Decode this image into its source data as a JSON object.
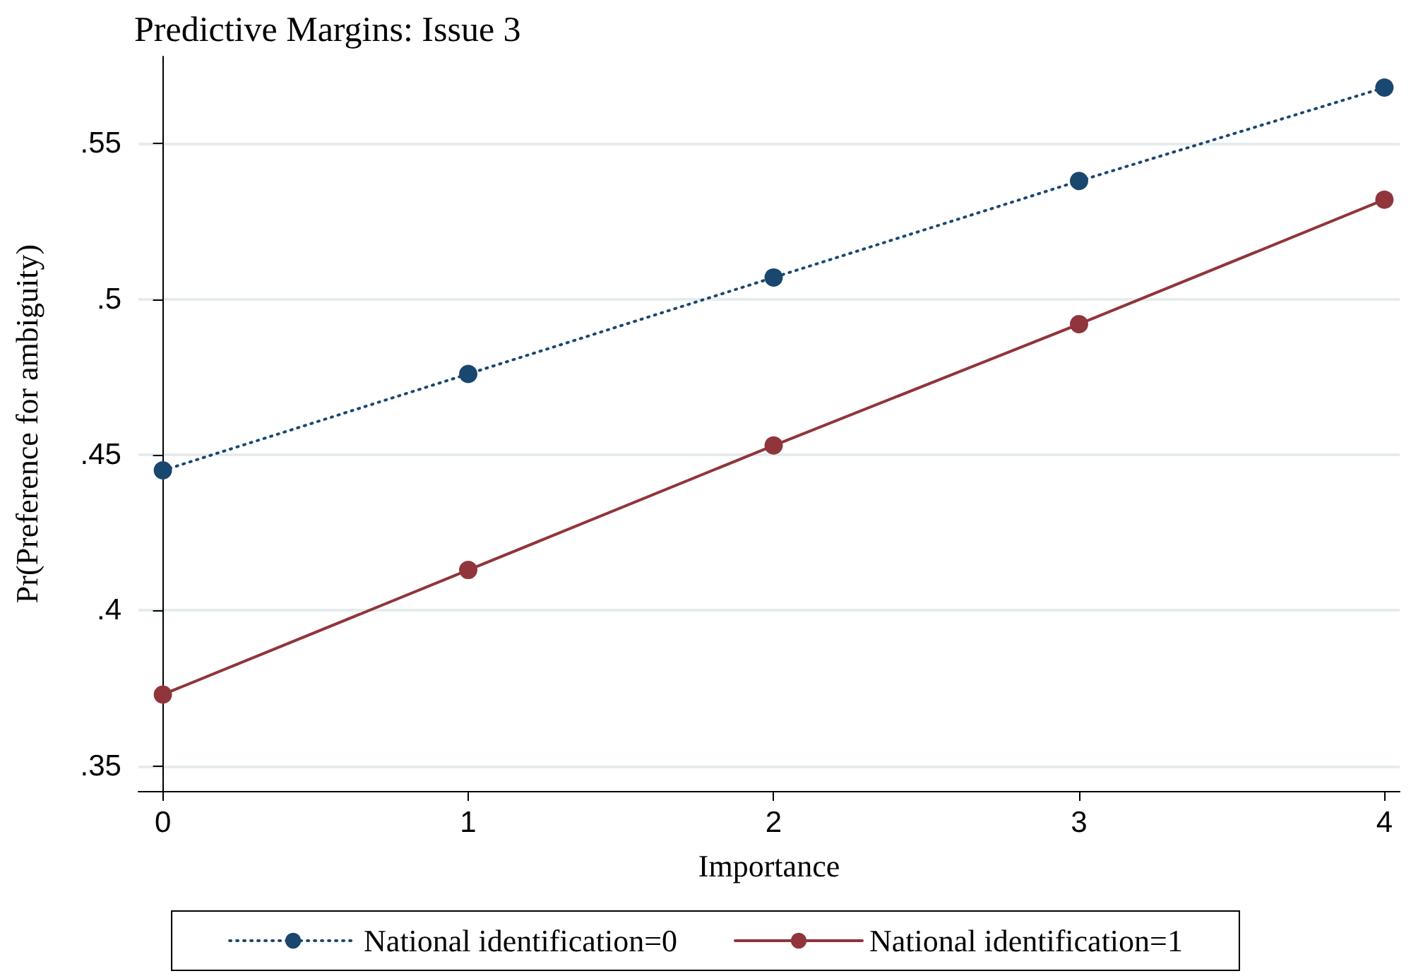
{
  "chart_data": {
    "type": "line",
    "title": "Predictive Margins: Issue 3",
    "xlabel": "Importance",
    "ylabel": "Pr(Preference for ambiguity)",
    "x": [
      0,
      1,
      2,
      3,
      4
    ],
    "series": [
      {
        "name": "National identification=0",
        "color": "#1a476f",
        "line_style": "dotted",
        "values": [
          0.445,
          0.476,
          0.507,
          0.538,
          0.568
        ]
      },
      {
        "name": "National identification=1",
        "color": "#90353b",
        "line_style": "solid",
        "values": [
          0.373,
          0.413,
          0.453,
          0.492,
          0.532
        ]
      }
    ],
    "xlim": [
      -0.08,
      4.05
    ],
    "xticks": [
      0,
      1,
      2,
      3,
      4
    ],
    "ylim": [
      0.342,
      0.578
    ],
    "yticks": [
      {
        "value": 0.35,
        "label": ".35"
      },
      {
        "value": 0.4,
        "label": ".4"
      },
      {
        "value": 0.45,
        "label": ".45"
      },
      {
        "value": 0.5,
        "label": ".5"
      },
      {
        "value": 0.55,
        "label": ".55"
      }
    ],
    "grid": "y",
    "legend": "bottom",
    "marker": "circle"
  }
}
